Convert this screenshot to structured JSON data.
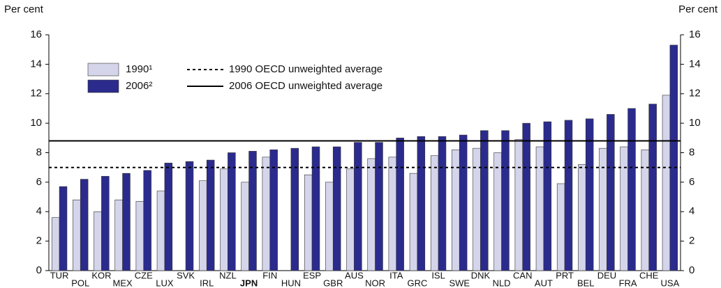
{
  "chart_data": {
    "type": "bar",
    "y_label": "Per cent",
    "y2_label": "Per cent",
    "categories": [
      "TUR",
      "POL",
      "KOR",
      "MEX",
      "CZE",
      "LUX",
      "SVK",
      "IRL",
      "NZL",
      "JPN",
      "FIN",
      "HUN",
      "ESP",
      "GBR",
      "AUS",
      "NOR",
      "ITA",
      "GRC",
      "ISL",
      "SWE",
      "DNK",
      "NLD",
      "CAN",
      "AUT",
      "PRT",
      "BEL",
      "DEU",
      "FRA",
      "CHE",
      "USA"
    ],
    "highlight": "JPN",
    "series": [
      {
        "name": "1990¹",
        "color": "#d4d4ea",
        "values": [
          3.6,
          4.8,
          4.0,
          4.8,
          4.7,
          5.4,
          null,
          6.1,
          6.9,
          6.0,
          7.7,
          null,
          6.5,
          6.0,
          6.9,
          7.6,
          7.7,
          6.6,
          7.8,
          8.2,
          8.3,
          8.0,
          8.9,
          8.4,
          5.9,
          7.2,
          8.3,
          8.4,
          8.2,
          11.9
        ]
      },
      {
        "name": "2006²",
        "color": "#2b2b8e",
        "values": [
          5.7,
          6.2,
          6.4,
          6.6,
          6.8,
          7.3,
          7.4,
          7.5,
          8.0,
          8.1,
          8.2,
          8.3,
          8.4,
          8.4,
          8.7,
          8.7,
          9.0,
          9.1,
          9.1,
          9.2,
          9.5,
          9.5,
          10.0,
          10.1,
          10.2,
          10.3,
          10.6,
          11.0,
          11.3,
          15.3
        ]
      }
    ],
    "reference_lines": [
      {
        "name": "1990  OECD unweighted average",
        "value": 7.0,
        "style": "dotted"
      },
      {
        "name": "2006  OECD unweighted average",
        "value": 8.8,
        "style": "solid"
      }
    ],
    "ylim": [
      0,
      16
    ],
    "yticks": [
      0,
      2,
      4,
      6,
      8,
      10,
      12,
      14,
      16
    ],
    "y2lim": [
      0,
      16
    ],
    "y2ticks": [
      0,
      2,
      4,
      6,
      8,
      10,
      12,
      14,
      16
    ]
  }
}
